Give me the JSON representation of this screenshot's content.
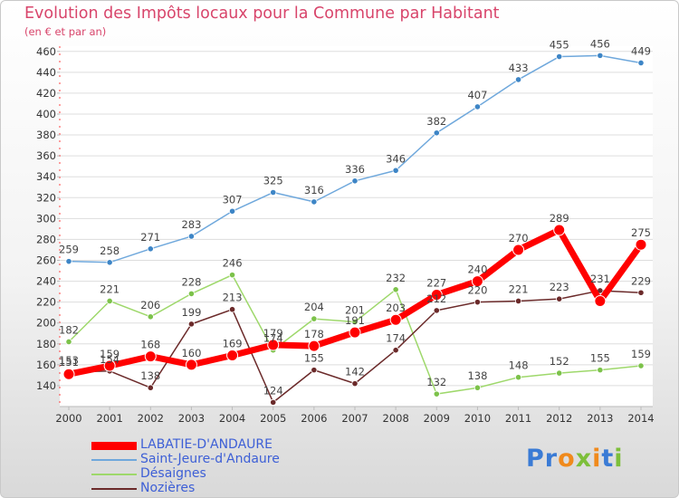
{
  "title": "Evolution des Impôts locaux pour la Commune par Habitant",
  "subtitle": "(en € et par an)",
  "logo": {
    "letters": [
      {
        "ch": "P",
        "color": "#3a7bd5"
      },
      {
        "ch": "r",
        "color": "#3a7bd5"
      },
      {
        "ch": "o",
        "color": "#f08a1c"
      },
      {
        "ch": "x",
        "color": "#7dbf3a"
      },
      {
        "ch": "i",
        "color": "#f08a1c"
      },
      {
        "ch": "t",
        "color": "#3a7bd5"
      },
      {
        "ch": "i",
        "color": "#7dbf3a"
      }
    ]
  },
  "chart_data": {
    "type": "line",
    "x": [
      "2000",
      "2001",
      "2002",
      "2003",
      "2004",
      "2005",
      "2006",
      "2007",
      "2008",
      "2009",
      "2010",
      "2011",
      "2012",
      "2013",
      "2014"
    ],
    "ylim": [
      120,
      465
    ],
    "yticks": [
      140,
      160,
      180,
      200,
      220,
      240,
      260,
      280,
      300,
      320,
      340,
      360,
      380,
      400,
      420,
      440,
      460
    ],
    "grid": true,
    "legend_position": "bottom-left",
    "series": [
      {
        "name": "LABATIE-D'ANDAURE",
        "color": "#ff0000",
        "point_color": "#ff0000",
        "width": 7,
        "thick": true,
        "values": [
          151,
          159,
          168,
          160,
          169,
          179,
          178,
          191,
          203,
          227,
          240,
          270,
          289,
          221,
          275
        ],
        "labels": [
          "151",
          "159",
          "168",
          "160",
          "169",
          "179",
          "178",
          "191",
          "203",
          "227",
          "240",
          "270",
          "289",
          "",
          "275"
        ]
      },
      {
        "name": "Saint-Jeure-d'Andaure",
        "color": "#6fa8dc",
        "point_color": "#3d85c6",
        "width": 1.5,
        "thick": false,
        "values": [
          259,
          258,
          271,
          283,
          307,
          325,
          316,
          336,
          346,
          382,
          407,
          433,
          455,
          456,
          449
        ],
        "labels": [
          "259",
          "258",
          "271",
          "283",
          "307",
          "325",
          "316",
          "336",
          "346",
          "382",
          "407",
          "433",
          "455",
          "456",
          "449"
        ]
      },
      {
        "name": "Désaignes",
        "color": "#9ed86b",
        "point_color": "#7cc24a",
        "width": 1.5,
        "thick": false,
        "values": [
          182,
          221,
          206,
          228,
          246,
          174,
          204,
          201,
          232,
          132,
          138,
          148,
          152,
          155,
          159
        ],
        "labels": [
          "182",
          "221",
          "206",
          "228",
          "246",
          "174",
          "204",
          "201",
          "232",
          "132",
          "138",
          "148",
          "152",
          "155",
          "159"
        ]
      },
      {
        "name": "Nozières",
        "color": "#6b2a2a",
        "point_color": "#6b2a2a",
        "width": 1.5,
        "thick": false,
        "values": [
          153,
          154,
          138,
          199,
          213,
          124,
          155,
          142,
          174,
          212,
          220,
          221,
          223,
          231,
          229
        ],
        "labels": [
          "153",
          "154",
          "138",
          "199",
          "213",
          "124",
          "155",
          "142",
          "174",
          "212",
          "220",
          "221",
          "223",
          "231",
          "229"
        ]
      }
    ]
  }
}
